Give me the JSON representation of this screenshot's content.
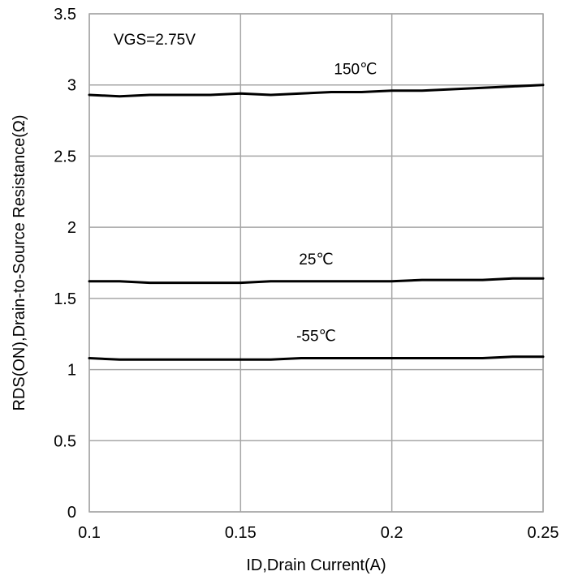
{
  "chart_data": {
    "type": "line",
    "title": "",
    "xlabel": "ID,Drain Current(A)",
    "ylabel": "RDS(ON),Drain-to-Source Resistance(Ω)",
    "xlim": [
      0.1,
      0.25
    ],
    "ylim": [
      0,
      3.5
    ],
    "x_ticks": [
      "0.1",
      "0.15",
      "0.2",
      "0.25"
    ],
    "y_ticks": [
      "0",
      "0.5",
      "1",
      "1.5",
      "2",
      "2.5",
      "3",
      "3.5"
    ],
    "grid": true,
    "legend": "none",
    "annotation": "VGS=2.75V",
    "x": [
      0.1,
      0.11,
      0.12,
      0.13,
      0.14,
      0.15,
      0.16,
      0.17,
      0.18,
      0.19,
      0.2,
      0.21,
      0.22,
      0.23,
      0.24,
      0.25
    ],
    "series": [
      {
        "name": "150℃",
        "values": [
          2.93,
          2.92,
          2.93,
          2.93,
          2.93,
          2.94,
          2.93,
          2.94,
          2.95,
          2.95,
          2.96,
          2.96,
          2.97,
          2.98,
          2.99,
          3.0
        ]
      },
      {
        "name": "25℃",
        "values": [
          1.62,
          1.62,
          1.61,
          1.61,
          1.61,
          1.61,
          1.62,
          1.62,
          1.62,
          1.62,
          1.62,
          1.63,
          1.63,
          1.63,
          1.64,
          1.64
        ]
      },
      {
        "name": "-55℃",
        "values": [
          1.08,
          1.07,
          1.07,
          1.07,
          1.07,
          1.07,
          1.07,
          1.08,
          1.08,
          1.08,
          1.08,
          1.08,
          1.08,
          1.08,
          1.09,
          1.09
        ]
      }
    ]
  }
}
